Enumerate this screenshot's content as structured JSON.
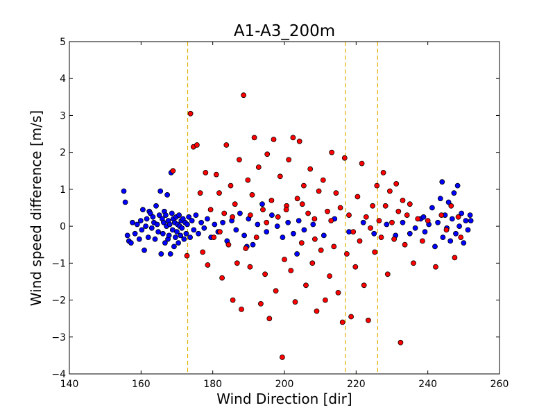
{
  "chart_data": {
    "type": "scatter",
    "title": "A1-A3_200m",
    "xlabel": "Wind Direction [dir]",
    "ylabel": "Wind speed difference [m/s]",
    "xlim": [
      140,
      260
    ],
    "ylim": [
      -4,
      5
    ],
    "xticks": [
      "140",
      "160",
      "180",
      "200",
      "220",
      "240",
      "260"
    ],
    "yticks": [
      "−4",
      "−3",
      "−2",
      "−1",
      "0",
      "1",
      "2",
      "3",
      "4",
      "5"
    ],
    "grid": false,
    "vlines": {
      "x": [
        173,
        217,
        226
      ],
      "color": "#e0b000",
      "style": "dashed"
    },
    "series": [
      {
        "color": "#0000ff",
        "points": [
          [
            155.2,
            0.95
          ],
          [
            155.6,
            0.65
          ],
          [
            156.2,
            -0.25
          ],
          [
            156.6,
            -0.4
          ],
          [
            157.2,
            -0.45
          ],
          [
            157.6,
            0.1
          ],
          [
            158.3,
            -0.2
          ],
          [
            158.9,
            0.05
          ],
          [
            159.5,
            -0.35
          ],
          [
            159.9,
            0.15
          ],
          [
            160.2,
            -0.1
          ],
          [
            160.5,
            0.45
          ],
          [
            160.9,
            -0.65
          ],
          [
            161.3,
            0.0
          ],
          [
            161.6,
            0.2
          ],
          [
            162.0,
            -0.3
          ],
          [
            162.3,
            0.4
          ],
          [
            162.6,
            0.35
          ],
          [
            163.0,
            -0.05
          ],
          [
            163.3,
            0.25
          ],
          [
            163.6,
            0.1
          ],
          [
            163.9,
            -0.35
          ],
          [
            164.2,
            0.55
          ],
          [
            164.5,
            0.05
          ],
          [
            164.8,
            -0.15
          ],
          [
            165.1,
            0.3
          ],
          [
            165.4,
            0.95
          ],
          [
            165.6,
            -0.75
          ],
          [
            165.9,
            0.2
          ],
          [
            166.1,
            -0.2
          ],
          [
            166.3,
            0.1
          ],
          [
            166.5,
            0.4
          ],
          [
            166.7,
            -0.45
          ],
          [
            166.9,
            0.3
          ],
          [
            167.1,
            0.0
          ],
          [
            167.3,
            0.85
          ],
          [
            167.5,
            -0.35
          ],
          [
            167.6,
            0.15
          ],
          [
            167.8,
            -0.25
          ],
          [
            168.0,
            0.05
          ],
          [
            168.2,
            -0.75
          ],
          [
            168.4,
            1.45
          ],
          [
            168.6,
            0.35
          ],
          [
            168.8,
            -0.1
          ],
          [
            169.0,
            0.2
          ],
          [
            169.2,
            -0.55
          ],
          [
            169.4,
            0.1
          ],
          [
            169.6,
            -0.3
          ],
          [
            169.8,
            0.25
          ],
          [
            170.0,
            -0.15
          ],
          [
            170.2,
            0.05
          ],
          [
            170.4,
            -0.45
          ],
          [
            170.6,
            0.3
          ],
          [
            170.8,
            0.0
          ],
          [
            171.0,
            -0.25
          ],
          [
            171.2,
            0.15
          ],
          [
            171.4,
            -0.05
          ],
          [
            171.7,
            0.2
          ],
          [
            172.0,
            -0.35
          ],
          [
            172.3,
            0.1
          ],
          [
            172.6,
            -0.2
          ],
          [
            172.9,
            0.05
          ],
          [
            173.3,
            0.25
          ],
          [
            173.7,
            -0.3
          ],
          [
            174.2,
            0.15
          ],
          [
            174.7,
            -0.1
          ],
          [
            175.3,
            0.3
          ],
          [
            176.0,
            -0.2
          ],
          [
            176.8,
            0.1
          ],
          [
            177.6,
            -0.05
          ],
          [
            178.5,
            0.2
          ],
          [
            179.5,
            -0.3
          ],
          [
            180.5,
            0.05
          ],
          [
            181.5,
            -0.15
          ],
          [
            182.8,
            0.1
          ],
          [
            184.0,
            -0.4
          ],
          [
            185.3,
            0.15
          ],
          [
            186.5,
            -0.1
          ],
          [
            187.6,
            0.35
          ],
          [
            188.8,
            -0.25
          ],
          [
            190.0,
            0.2
          ],
          [
            191.2,
            -0.5
          ],
          [
            192.5,
            0.05
          ],
          [
            193.8,
            0.6
          ],
          [
            195.0,
            -0.15
          ],
          [
            196.5,
            0.3
          ],
          [
            198.0,
            0.0
          ],
          [
            199.5,
            -0.3
          ],
          [
            201.0,
            0.1
          ],
          [
            202.5,
            -0.2
          ],
          [
            204.0,
            0.15
          ],
          [
            205.5,
            -0.1
          ],
          [
            208.0,
            0.05
          ],
          [
            211.0,
            -0.25
          ],
          [
            214.0,
            0.2
          ],
          [
            218.0,
            -0.15
          ],
          [
            222.0,
            0.1
          ],
          [
            225.0,
            -0.2
          ],
          [
            228.5,
            0.05
          ],
          [
            231.0,
            -0.25
          ],
          [
            233.0,
            0.1
          ],
          [
            235.0,
            -0.2
          ],
          [
            236.5,
            -0.05
          ],
          [
            238.0,
            0.2
          ],
          [
            239.2,
            -0.15
          ],
          [
            240.3,
            0.05
          ],
          [
            241.2,
            0.5
          ],
          [
            242.0,
            -0.55
          ],
          [
            242.8,
            0.1
          ],
          [
            243.5,
            0.75
          ],
          [
            244.2,
            -0.3
          ],
          [
            244.8,
            0.3
          ],
          [
            245.3,
            -0.05
          ],
          [
            245.8,
            0.65
          ],
          [
            246.3,
            -0.4
          ],
          [
            246.8,
            0.2
          ],
          [
            247.3,
            0.9
          ],
          [
            247.8,
            -0.2
          ],
          [
            248.3,
            1.1
          ],
          [
            248.8,
            0.0
          ],
          [
            249.4,
            0.35
          ],
          [
            250.0,
            -0.45
          ],
          [
            250.6,
            0.15
          ],
          [
            251.2,
            -0.1
          ],
          [
            251.8,
            0.3
          ],
          [
            252.0,
            0.15
          ],
          [
            244.0,
            1.2
          ],
          [
            238.8,
            0.25
          ],
          [
            203.5,
            -0.75
          ],
          [
            189.5,
            -0.55
          ]
        ]
      },
      {
        "color": "#ff0000",
        "points": [
          [
            168.9,
            1.5
          ],
          [
            172.8,
            -0.8
          ],
          [
            173.8,
            3.05
          ],
          [
            174.6,
            2.15
          ],
          [
            175.6,
            2.2
          ],
          [
            176.5,
            0.9
          ],
          [
            177.2,
            -0.7
          ],
          [
            178.0,
            1.45
          ],
          [
            178.6,
            -1.05
          ],
          [
            179.4,
            0.45
          ],
          [
            180.3,
            -0.3
          ],
          [
            181.0,
            1.4
          ],
          [
            181.8,
            0.9
          ],
          [
            182.6,
            -1.4
          ],
          [
            183.2,
            0.35
          ],
          [
            183.8,
            2.2
          ],
          [
            184.4,
            -0.5
          ],
          [
            185.0,
            1.1
          ],
          [
            185.6,
            -2.0
          ],
          [
            186.2,
            0.6
          ],
          [
            186.8,
            -1.0
          ],
          [
            187.4,
            1.8
          ],
          [
            188.0,
            -2.25
          ],
          [
            188.6,
            3.55
          ],
          [
            189.2,
            -0.6
          ],
          [
            189.8,
            1.25
          ],
          [
            190.4,
            -1.1
          ],
          [
            191.0,
            0.85
          ],
          [
            191.6,
            2.4
          ],
          [
            192.2,
            -0.3
          ],
          [
            192.8,
            1.6
          ],
          [
            193.4,
            -2.1
          ],
          [
            194.0,
            0.45
          ],
          [
            194.6,
            -1.3
          ],
          [
            195.2,
            1.95
          ],
          [
            195.8,
            -2.5
          ],
          [
            196.4,
            0.7
          ],
          [
            197.0,
            2.35
          ],
          [
            197.6,
            -1.75
          ],
          [
            198.2,
            0.25
          ],
          [
            198.8,
            1.35
          ],
          [
            199.4,
            -3.55
          ],
          [
            200.0,
            -0.9
          ],
          [
            200.6,
            0.55
          ],
          [
            201.2,
            1.8
          ],
          [
            201.8,
            -1.2
          ],
          [
            202.4,
            2.4
          ],
          [
            203.0,
            -2.05
          ],
          [
            203.6,
            0.75
          ],
          [
            204.2,
            2.3
          ],
          [
            204.8,
            -0.45
          ],
          [
            205.4,
            1.1
          ],
          [
            206.0,
            -1.6
          ],
          [
            206.6,
            0.35
          ],
          [
            207.2,
            1.55
          ],
          [
            207.8,
            -1.0
          ],
          [
            208.4,
            0.2
          ],
          [
            209.0,
            -2.3
          ],
          [
            209.6,
            0.95
          ],
          [
            210.2,
            -0.65
          ],
          [
            210.8,
            1.25
          ],
          [
            211.4,
            -2.0
          ],
          [
            212.0,
            0.4
          ],
          [
            212.6,
            -1.35
          ],
          [
            213.2,
            2.0
          ],
          [
            213.8,
            -0.55
          ],
          [
            214.4,
            0.9
          ],
          [
            215.0,
            -1.8
          ],
          [
            215.6,
            0.5
          ],
          [
            216.2,
            -2.6
          ],
          [
            216.8,
            1.85
          ],
          [
            217.4,
            -0.75
          ],
          [
            218.0,
            0.3
          ],
          [
            218.6,
            -2.45
          ],
          [
            219.2,
            -0.15
          ],
          [
            219.8,
            -1.1
          ],
          [
            220.4,
            0.8
          ],
          [
            221.0,
            -0.4
          ],
          [
            221.6,
            1.7
          ],
          [
            222.2,
            -1.6
          ],
          [
            222.8,
            0.25
          ],
          [
            223.4,
            -2.55
          ],
          [
            224.0,
            -0.05
          ],
          [
            224.6,
            0.55
          ],
          [
            225.2,
            -0.7
          ],
          [
            225.8,
            1.1
          ],
          [
            226.4,
            0.15
          ],
          [
            227.0,
            -0.3
          ],
          [
            227.6,
            1.45
          ],
          [
            228.2,
            0.55
          ],
          [
            228.8,
            -1.3
          ],
          [
            229.4,
            0.95
          ],
          [
            230.0,
            0.1
          ],
          [
            230.6,
            -0.35
          ],
          [
            231.2,
            1.15
          ],
          [
            231.8,
            0.4
          ],
          [
            232.4,
            -3.15
          ],
          [
            233.0,
            0.7
          ],
          [
            233.6,
            -0.5
          ],
          [
            234.2,
            0.3
          ],
          [
            235.0,
            0.6
          ],
          [
            236.0,
            -1.0
          ],
          [
            237.2,
            0.2
          ],
          [
            238.5,
            -0.4
          ],
          [
            240.0,
            0.15
          ],
          [
            242.2,
            -1.1
          ],
          [
            243.8,
            0.3
          ],
          [
            245.2,
            -0.1
          ],
          [
            246.5,
            0.55
          ],
          [
            247.5,
            -0.85
          ],
          [
            248.5,
            0.25
          ],
          [
            249.2,
            -0.3
          ],
          [
            190.5,
            0.3
          ],
          [
            195.0,
            0.1
          ],
          [
            200.5,
            0.45
          ],
          [
            205.0,
            0.6
          ],
          [
            208.5,
            -0.35
          ],
          [
            213.0,
            0.15
          ],
          [
            185.5,
            0.25
          ],
          [
            182.0,
            -0.15
          ]
        ]
      }
    ]
  }
}
